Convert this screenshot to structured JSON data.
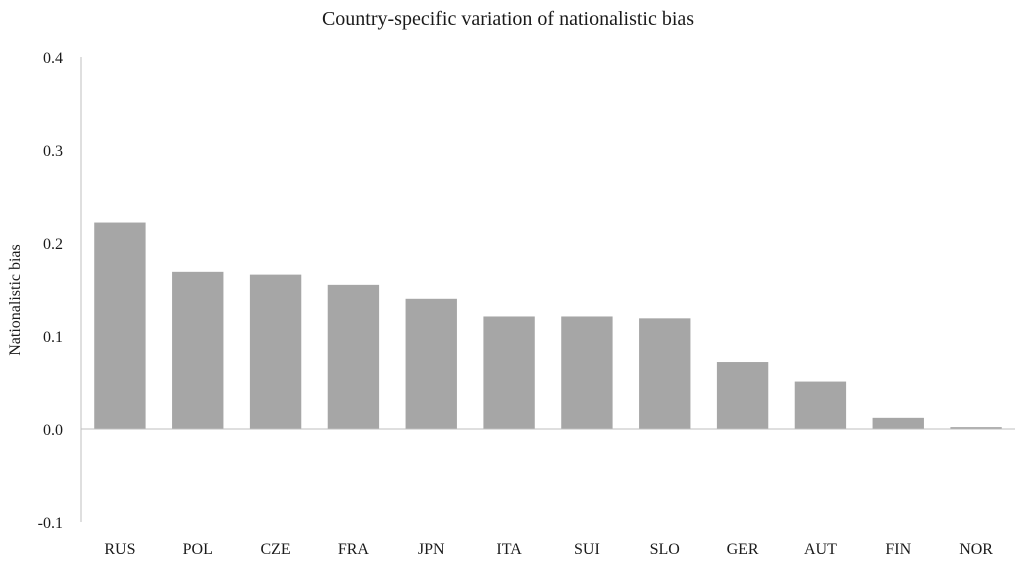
{
  "chart_data": {
    "type": "bar",
    "title": "Country-specific variation of nationalistic bias",
    "xlabel": "",
    "ylabel": "Nationalistic bias",
    "ylim": [
      -0.1,
      0.4
    ],
    "yticks": [
      0.4,
      0.3,
      0.2,
      0.1,
      0.0,
      -0.1
    ],
    "ytick_labels": [
      "0.4",
      "0.3",
      "0.2",
      "0.1",
      "0.0",
      "-0.1"
    ],
    "categories": [
      "RUS",
      "POL",
      "CZE",
      "FRA",
      "JPN",
      "ITA",
      "SUI",
      "SLO",
      "GER",
      "AUT",
      "FIN",
      "NOR"
    ],
    "values": [
      0.222,
      0.169,
      0.166,
      0.155,
      0.14,
      0.121,
      0.121,
      0.119,
      0.072,
      0.051,
      0.012,
      0.002
    ],
    "grid": false,
    "legend": "none",
    "bar_color": "#a6a6a6",
    "axis_color": "#bfbfbf"
  }
}
